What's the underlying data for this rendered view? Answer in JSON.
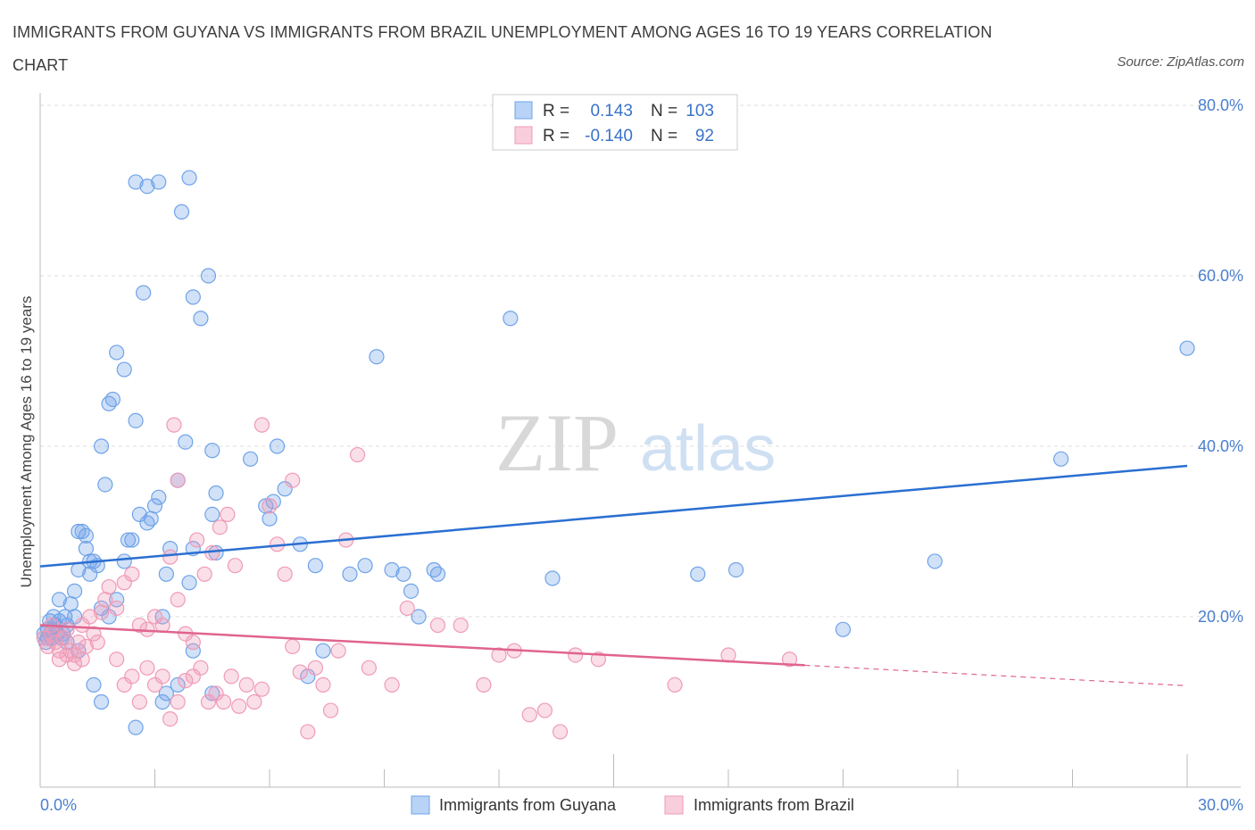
{
  "title": "IMMIGRANTS FROM GUYANA VS IMMIGRANTS FROM BRAZIL UNEMPLOYMENT AMONG AGES 16 TO 19 YEARS CORRELATION CHART",
  "source": "Source: ZipAtlas.com",
  "watermark": {
    "zip": "ZIP",
    "atlas": "atlas"
  },
  "colors": {
    "guyana": "#6fa3e8",
    "guyana_line": "#2a6fd1",
    "brazil": "#f09ab6",
    "brazil_line": "#e0648e",
    "grid": "#dcdcdc",
    "tick": "#4a7fcf"
  },
  "legend": {
    "rows": [
      {
        "r_label": "R =",
        "r_value": "0.143",
        "n_label": "N =",
        "n_value": "103"
      },
      {
        "r_label": "R =",
        "r_value": "-0.140",
        "n_label": "N =",
        "n_value": "92"
      }
    ]
  },
  "bottom_legend": [
    "Immigrants from Guyana",
    "Immigrants from Brazil"
  ],
  "chart_data": {
    "type": "scatter",
    "ylabel": "Unemployment Among Ages 16 to 19 years",
    "xlim": [
      0,
      30
    ],
    "ylim": [
      0,
      80
    ],
    "x_tick_labels": [
      "0.0%",
      "30.0%"
    ],
    "y_tick_labels": [
      "20.0%",
      "40.0%",
      "60.0%",
      "80.0%"
    ],
    "y_ticks": [
      20,
      40,
      60,
      80
    ],
    "grid": "horizontal dashed",
    "series": [
      {
        "name": "Immigrants from Guyana",
        "trend": {
          "x": [
            0,
            30
          ],
          "y": [
            25.9,
            37.7
          ]
        },
        "points": [
          [
            0.1,
            18
          ],
          [
            0.15,
            17
          ],
          [
            0.2,
            18.5
          ],
          [
            0.25,
            19.5
          ],
          [
            0.3,
            17.5
          ],
          [
            0.35,
            20
          ],
          [
            0.4,
            19
          ],
          [
            0.45,
            18
          ],
          [
            0.5,
            19.5
          ],
          [
            0.55,
            17.5
          ],
          [
            0.6,
            18
          ],
          [
            0.65,
            20
          ],
          [
            0.7,
            19
          ],
          [
            0.3,
            18.5
          ],
          [
            0.2,
            17.5
          ],
          [
            0.5,
            22
          ],
          [
            0.8,
            21.5
          ],
          [
            0.9,
            20
          ],
          [
            0.7,
            17
          ],
          [
            1.0,
            16
          ],
          [
            0.9,
            23
          ],
          [
            1.0,
            25.5
          ],
          [
            1.1,
            30
          ],
          [
            1.2,
            28
          ],
          [
            1.3,
            26.5
          ],
          [
            1.4,
            26.5
          ],
          [
            1.5,
            26
          ],
          [
            1.2,
            29.5
          ],
          [
            1.3,
            25
          ],
          [
            1.0,
            30
          ],
          [
            1.6,
            40
          ],
          [
            1.7,
            35.5
          ],
          [
            1.8,
            45
          ],
          [
            1.9,
            45.5
          ],
          [
            2.0,
            51
          ],
          [
            2.2,
            49
          ],
          [
            2.3,
            29
          ],
          [
            2.5,
            43
          ],
          [
            2.7,
            58
          ],
          [
            2.8,
            31
          ],
          [
            2.9,
            31.5
          ],
          [
            3.0,
            33
          ],
          [
            3.1,
            34
          ],
          [
            2.6,
            32
          ],
          [
            2.4,
            29
          ],
          [
            2.2,
            26.5
          ],
          [
            2.0,
            22
          ],
          [
            1.8,
            20
          ],
          [
            1.6,
            21
          ],
          [
            1.4,
            12
          ],
          [
            1.6,
            10
          ],
          [
            2.5,
            7
          ],
          [
            2.5,
            71
          ],
          [
            2.8,
            70.5
          ],
          [
            3.1,
            71
          ],
          [
            3.7,
            67.5
          ],
          [
            3.9,
            71.5
          ],
          [
            4.0,
            57.5
          ],
          [
            4.2,
            55
          ],
          [
            4.4,
            60
          ],
          [
            3.8,
            40.5
          ],
          [
            3.6,
            36
          ],
          [
            3.9,
            24
          ],
          [
            4.0,
            28
          ],
          [
            3.4,
            28
          ],
          [
            3.3,
            25
          ],
          [
            3.2,
            20
          ],
          [
            3.3,
            11
          ],
          [
            3.6,
            12
          ],
          [
            3.2,
            10
          ],
          [
            4.5,
            39.5
          ],
          [
            4.6,
            27.5
          ],
          [
            4.6,
            34.5
          ],
          [
            4.5,
            32
          ],
          [
            5.5,
            38.5
          ],
          [
            5.9,
            33
          ],
          [
            6.1,
            33.5
          ],
          [
            6.0,
            31.5
          ],
          [
            6.2,
            40
          ],
          [
            6.4,
            35
          ],
          [
            6.8,
            28.5
          ],
          [
            7.2,
            26
          ],
          [
            7.4,
            16
          ],
          [
            7.0,
            13
          ],
          [
            8.1,
            25
          ],
          [
            8.5,
            26
          ],
          [
            8.8,
            50.5
          ],
          [
            9.2,
            25.5
          ],
          [
            9.5,
            25
          ],
          [
            9.7,
            23
          ],
          [
            9.9,
            20
          ],
          [
            10.3,
            25.5
          ],
          [
            10.4,
            25
          ],
          [
            12.3,
            55
          ],
          [
            13.4,
            24.5
          ],
          [
            17.2,
            25
          ],
          [
            18.2,
            25.5
          ],
          [
            21.0,
            18.5
          ],
          [
            23.4,
            26.5
          ],
          [
            30.0,
            51.5
          ],
          [
            26.7,
            38.5
          ],
          [
            4.0,
            16
          ],
          [
            4.5,
            11
          ]
        ]
      },
      {
        "name": "Immigrants from Brazil",
        "trend": {
          "x": [
            0,
            20
          ],
          "y": [
            19.0,
            14.3
          ]
        },
        "trend_dashed": {
          "x": [
            20,
            30
          ],
          "y": [
            14.3,
            11.9
          ]
        },
        "points": [
          [
            0.1,
            17.5
          ],
          [
            0.2,
            16.5
          ],
          [
            0.3,
            18
          ],
          [
            0.4,
            17
          ],
          [
            0.5,
            16
          ],
          [
            0.6,
            17.5
          ],
          [
            0.7,
            18.5
          ],
          [
            0.8,
            16
          ],
          [
            0.9,
            15.5
          ],
          [
            1.0,
            17
          ],
          [
            1.1,
            19
          ],
          [
            1.2,
            16.5
          ],
          [
            1.3,
            20
          ],
          [
            1.4,
            18
          ],
          [
            1.5,
            17
          ],
          [
            0.3,
            19
          ],
          [
            0.5,
            15
          ],
          [
            0.7,
            15.5
          ],
          [
            0.9,
            14.5
          ],
          [
            1.1,
            15
          ],
          [
            1.6,
            20.5
          ],
          [
            1.7,
            22
          ],
          [
            1.8,
            23.5
          ],
          [
            2.0,
            21
          ],
          [
            2.2,
            24
          ],
          [
            2.4,
            25
          ],
          [
            2.6,
            19
          ],
          [
            2.8,
            18.5
          ],
          [
            3.0,
            20
          ],
          [
            3.2,
            19
          ],
          [
            3.4,
            27
          ],
          [
            3.6,
            22
          ],
          [
            3.8,
            18
          ],
          [
            4.0,
            17
          ],
          [
            4.1,
            29
          ],
          [
            4.3,
            25
          ],
          [
            4.5,
            27.5
          ],
          [
            4.7,
            30.5
          ],
          [
            4.9,
            32
          ],
          [
            5.1,
            26
          ],
          [
            2.0,
            15
          ],
          [
            2.2,
            12
          ],
          [
            2.4,
            13
          ],
          [
            2.6,
            10
          ],
          [
            2.8,
            14
          ],
          [
            3.0,
            12
          ],
          [
            3.2,
            13
          ],
          [
            3.4,
            8
          ],
          [
            3.6,
            10
          ],
          [
            3.8,
            12.5
          ],
          [
            4.0,
            13
          ],
          [
            4.2,
            14
          ],
          [
            4.4,
            10
          ],
          [
            4.6,
            11
          ],
          [
            4.8,
            10
          ],
          [
            5.0,
            13
          ],
          [
            5.2,
            9.5
          ],
          [
            5.4,
            12
          ],
          [
            5.6,
            10
          ],
          [
            5.8,
            11.5
          ],
          [
            6.0,
            33
          ],
          [
            6.2,
            28.5
          ],
          [
            6.4,
            25
          ],
          [
            6.6,
            16.5
          ],
          [
            6.8,
            13.5
          ],
          [
            7.0,
            6.5
          ],
          [
            7.2,
            14
          ],
          [
            7.4,
            12
          ],
          [
            7.6,
            9
          ],
          [
            7.8,
            16
          ],
          [
            3.5,
            42.5
          ],
          [
            3.6,
            36
          ],
          [
            5.8,
            42.5
          ],
          [
            6.6,
            36
          ],
          [
            8.0,
            29
          ],
          [
            8.3,
            39
          ],
          [
            8.6,
            14
          ],
          [
            9.2,
            12
          ],
          [
            9.6,
            21
          ],
          [
            10.4,
            19
          ],
          [
            11.0,
            19
          ],
          [
            11.6,
            12
          ],
          [
            12.0,
            15.5
          ],
          [
            12.4,
            16
          ],
          [
            12.8,
            8.5
          ],
          [
            13.2,
            9
          ],
          [
            13.6,
            6.5
          ],
          [
            14.0,
            15.5
          ],
          [
            14.6,
            15
          ],
          [
            16.6,
            12
          ],
          [
            18.0,
            15.5
          ],
          [
            19.6,
            15
          ]
        ]
      }
    ]
  }
}
